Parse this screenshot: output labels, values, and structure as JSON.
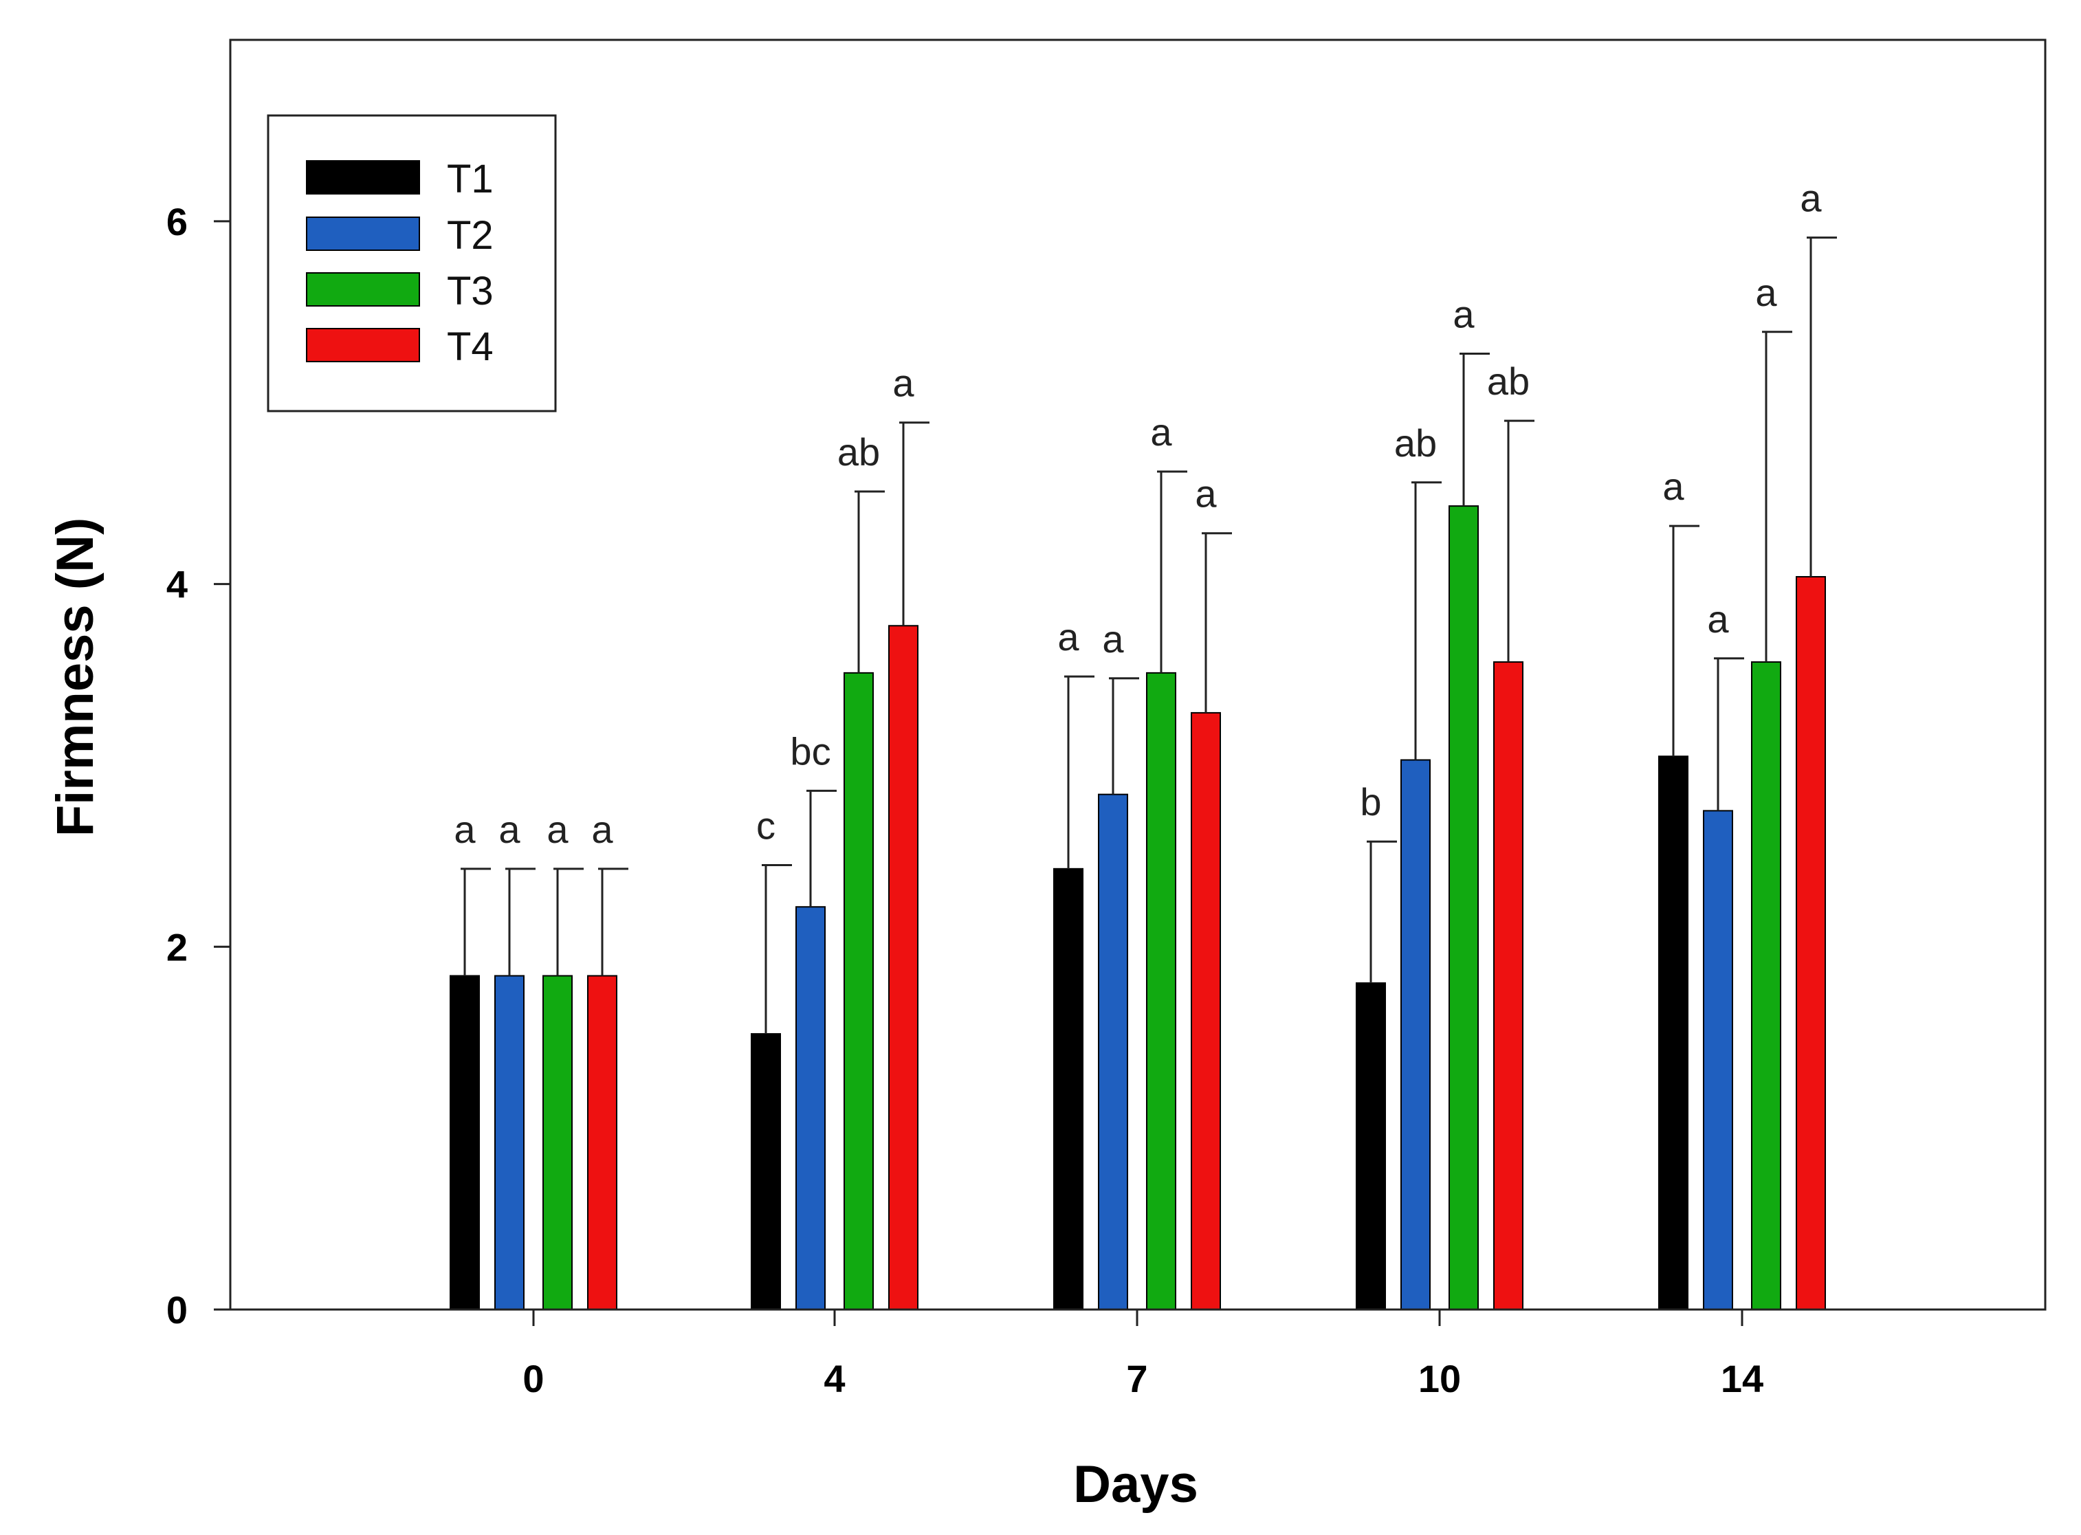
{
  "chart_data": {
    "type": "bar",
    "title": "",
    "xlabel": "Days",
    "ylabel": "Firmness (N)",
    "categories": [
      "0",
      "4",
      "7",
      "10",
      "14"
    ],
    "ylim": [
      0,
      7
    ],
    "yticks": [
      "0",
      "2",
      "4",
      "6"
    ],
    "legend_position": "top-left",
    "series": [
      {
        "name": "T1",
        "color": "#000000",
        "values": [
          1.84,
          1.52,
          2.43,
          1.8,
          3.05
        ],
        "errors": [
          0.59,
          0.93,
          1.06,
          0.78,
          1.27
        ],
        "letters": [
          "a",
          "c",
          "a",
          "b",
          "a"
        ]
      },
      {
        "name": "T2",
        "color": "#1f5fbf",
        "values": [
          1.84,
          2.22,
          2.84,
          3.03,
          2.75
        ],
        "errors": [
          0.59,
          0.64,
          0.64,
          1.53,
          0.84
        ],
        "letters": [
          "a",
          "bc",
          "a",
          "ab",
          "a"
        ]
      },
      {
        "name": "T3",
        "color": "#11aa11",
        "values": [
          1.84,
          3.51,
          3.51,
          4.43,
          3.57
        ],
        "errors": [
          0.59,
          1.0,
          1.11,
          0.84,
          1.82
        ],
        "letters": [
          "a",
          "ab",
          "a",
          "a",
          "a"
        ]
      },
      {
        "name": "T4",
        "color": "#ee1111",
        "values": [
          1.84,
          3.77,
          3.29,
          3.57,
          4.04
        ],
        "errors": [
          0.59,
          1.12,
          0.99,
          1.33,
          1.87
        ],
        "letters": [
          "a",
          "a",
          "a",
          "ab",
          "a"
        ]
      }
    ]
  }
}
